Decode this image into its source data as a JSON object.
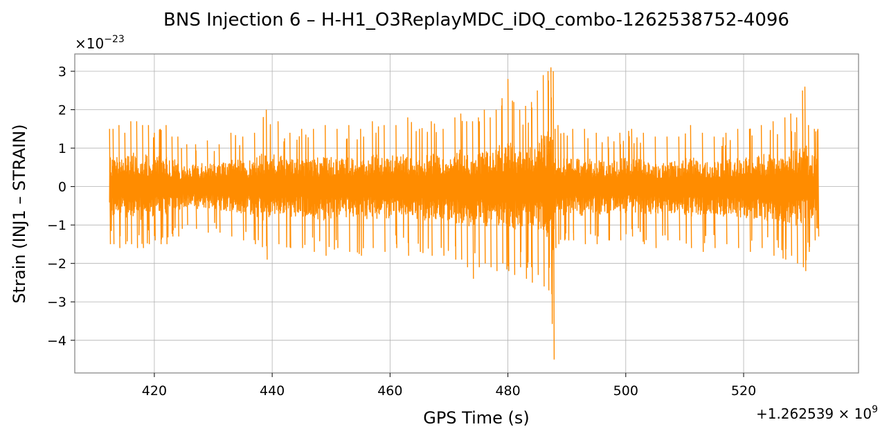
{
  "chart_data": {
    "type": "line",
    "title": "BNS Injection 6 – H-H1_O3ReplayMDC_iDQ_combo-1262538752-4096",
    "xlabel": "GPS Time (s)",
    "ylabel": "Strain (INJ1 – STRAIN)",
    "y_scale_text": "×10",
    "y_scale_exp": "−23",
    "x_offset_text": "+1.262539 × 10",
    "x_offset_exp": "9",
    "xlim": [
      406.5,
      539.5
    ],
    "ylim": [
      -4.85,
      3.45
    ],
    "xticks": [
      420,
      440,
      460,
      480,
      500,
      520
    ],
    "xtick_labels": [
      "420",
      "440",
      "460",
      "480",
      "500",
      "520"
    ],
    "yticks": [
      -4,
      -3,
      -2,
      -1,
      0,
      1,
      2,
      3
    ],
    "ytick_labels": [
      "−4",
      "−3",
      "−2",
      "−1",
      "0",
      "1",
      "2",
      "3"
    ],
    "grid": true,
    "series": [
      {
        "color": "#ff8c00",
        "x": [
          412.4,
          413.0,
          414.0,
          415.0,
          416.0,
          417.0,
          418.0,
          419.0,
          420.0,
          421.0,
          422.0,
          423.0,
          424.0,
          424.6,
          425.5,
          427.0,
          429.0,
          431.0,
          433.0,
          435.0,
          437.0,
          439.0,
          441.0,
          443.0,
          445.0,
          447.0,
          449.0,
          451.0,
          453.0,
          455.0,
          457.0,
          459.0,
          461.0,
          463.0,
          465.0,
          467.0,
          469.0,
          471.0,
          472.0,
          473.0,
          474.0,
          475.0,
          476.0,
          477.0,
          478.0,
          479.0,
          480.0,
          481.0,
          482.0,
          483.0,
          484.0,
          485.0,
          486.0,
          486.8,
          487.3,
          487.7,
          488.0,
          488.5,
          489.5,
          491.0,
          493.0,
          495.0,
          497.0,
          499.0,
          501.0,
          503.0,
          505.0,
          507.0,
          509.0,
          511.0,
          513.0,
          515.0,
          517.0,
          519.0,
          521.0,
          523.0,
          525.0,
          527.0,
          528.0,
          529.0,
          530.0,
          530.4,
          531.0,
          532.0,
          532.6
        ],
        "max": [
          1.5,
          1.5,
          1.6,
          1.4,
          1.7,
          1.7,
          1.6,
          1.6,
          1.4,
          1.5,
          1.6,
          1.3,
          1.3,
          1.0,
          1.1,
          1.1,
          1.2,
          1.1,
          1.4,
          1.3,
          1.4,
          2.0,
          1.7,
          1.4,
          1.5,
          1.5,
          1.6,
          1.5,
          1.6,
          1.5,
          1.7,
          1.6,
          1.6,
          1.8,
          1.5,
          1.7,
          1.5,
          1.8,
          1.9,
          1.7,
          1.7,
          1.8,
          2.0,
          1.8,
          2.0,
          2.3,
          2.8,
          2.2,
          2.0,
          2.1,
          2.2,
          2.5,
          2.9,
          3.0,
          3.1,
          3.0,
          1.5,
          1.6,
          1.4,
          1.5,
          1.5,
          1.4,
          1.3,
          1.4,
          1.5,
          1.4,
          1.3,
          1.3,
          1.3,
          1.6,
          1.4,
          1.3,
          1.4,
          1.5,
          1.5,
          1.6,
          1.7,
          1.8,
          1.9,
          1.8,
          2.5,
          2.6,
          1.6,
          1.5,
          1.5
        ],
        "min": [
          -1.5,
          -1.5,
          -1.6,
          -1.5,
          -1.5,
          -1.6,
          -1.6,
          -1.5,
          -1.4,
          -1.5,
          -1.5,
          -1.3,
          -1.3,
          -1.1,
          -1.0,
          -1.1,
          -1.2,
          -1.2,
          -1.3,
          -1.4,
          -1.5,
          -1.9,
          -1.5,
          -1.6,
          -1.6,
          -1.7,
          -1.8,
          -1.6,
          -1.7,
          -1.8,
          -1.6,
          -1.7,
          -1.6,
          -1.8,
          -1.7,
          -1.8,
          -1.8,
          -1.9,
          -1.9,
          -2.1,
          -2.4,
          -2.1,
          -2.0,
          -2.1,
          -2.2,
          -2.0,
          -2.2,
          -2.3,
          -2.1,
          -2.4,
          -2.5,
          -2.3,
          -2.6,
          -2.7,
          -2.8,
          -4.5,
          -1.6,
          -1.5,
          -1.4,
          -1.4,
          -1.5,
          -1.5,
          -1.4,
          -1.4,
          -1.3,
          -1.5,
          -1.6,
          -1.4,
          -1.4,
          -1.6,
          -1.7,
          -1.6,
          -1.5,
          -1.6,
          -1.7,
          -1.6,
          -1.8,
          -1.9,
          -1.8,
          -2.0,
          -2.1,
          -2.2,
          -1.7,
          -1.4,
          -1.3
        ],
        "rms": [
          0.45,
          0.45,
          0.5,
          0.45,
          0.5,
          0.5,
          0.5,
          0.45,
          0.45,
          0.45,
          0.45,
          0.4,
          0.4,
          0.3,
          0.32,
          0.34,
          0.36,
          0.36,
          0.4,
          0.4,
          0.42,
          0.55,
          0.45,
          0.45,
          0.45,
          0.48,
          0.5,
          0.45,
          0.48,
          0.48,
          0.48,
          0.5,
          0.48,
          0.52,
          0.48,
          0.52,
          0.5,
          0.55,
          0.55,
          0.58,
          0.6,
          0.58,
          0.58,
          0.6,
          0.62,
          0.62,
          0.7,
          0.65,
          0.6,
          0.65,
          0.68,
          0.7,
          0.8,
          0.85,
          0.9,
          1.0,
          0.45,
          0.45,
          0.42,
          0.42,
          0.44,
          0.42,
          0.4,
          0.42,
          0.42,
          0.42,
          0.42,
          0.4,
          0.4,
          0.46,
          0.45,
          0.44,
          0.44,
          0.46,
          0.48,
          0.48,
          0.52,
          0.55,
          0.55,
          0.58,
          0.65,
          0.68,
          0.5,
          0.44,
          0.42
        ]
      }
    ]
  }
}
